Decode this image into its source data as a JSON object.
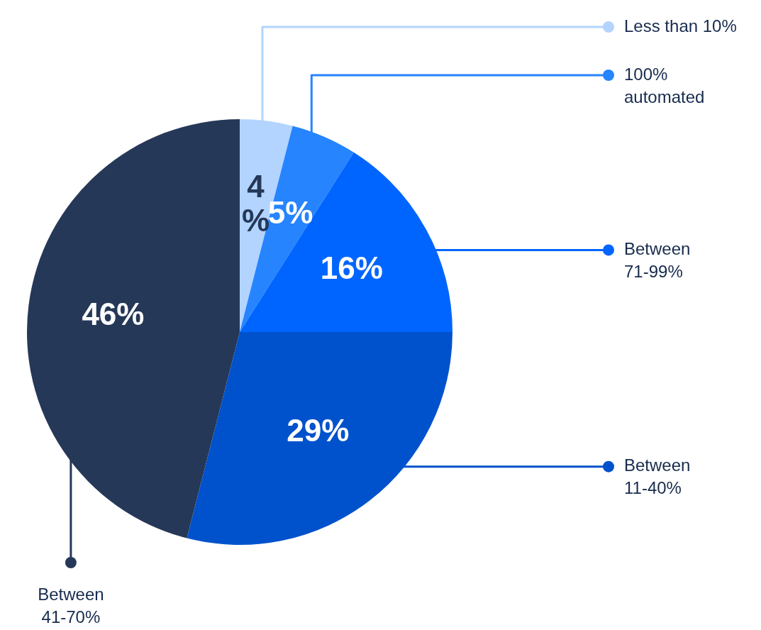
{
  "chart_data": {
    "type": "pie",
    "categories": [
      "Less than 10%",
      "100% automated",
      "Between 71-99%",
      "Between 11-40%",
      "Between 41-70%"
    ],
    "values": [
      4,
      5,
      16,
      29,
      46
    ],
    "colors": [
      "#b3d4ff",
      "#2684ff",
      "#0065ff",
      "#0052cc",
      "#253858"
    ],
    "value_labels": [
      "4%",
      "5%",
      "16%",
      "29%",
      "46%"
    ],
    "legend": "right"
  }
}
